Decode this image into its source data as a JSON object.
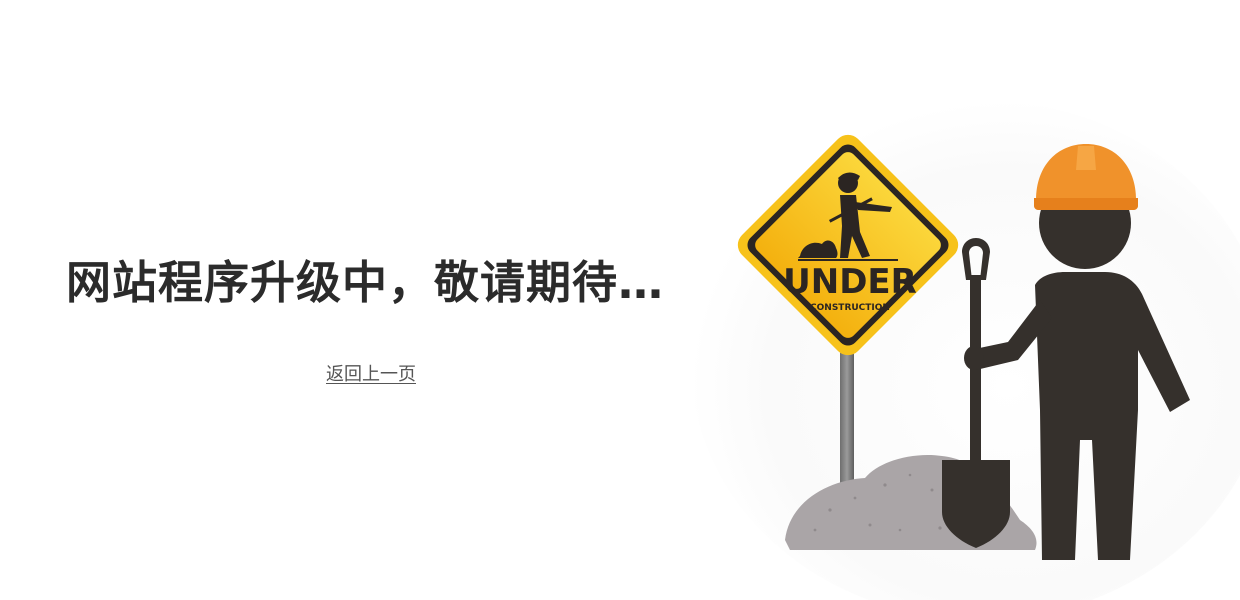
{
  "message": {
    "headline": "网站程序升级中，敬请期待…",
    "back_link": "返回上一页"
  },
  "sign": {
    "main_text": "UNDER",
    "sub_text": "CONSTRUCTION"
  },
  "colors": {
    "headline": "#2b2b2b",
    "link": "#555555",
    "sign_yellow": "#f7c21a",
    "sign_border": "#2b2522",
    "worker_body": "#35302c",
    "helmet": "#f0922b",
    "dirt_pile": "#a9a4a6",
    "background_glow": "#eeeeee"
  }
}
